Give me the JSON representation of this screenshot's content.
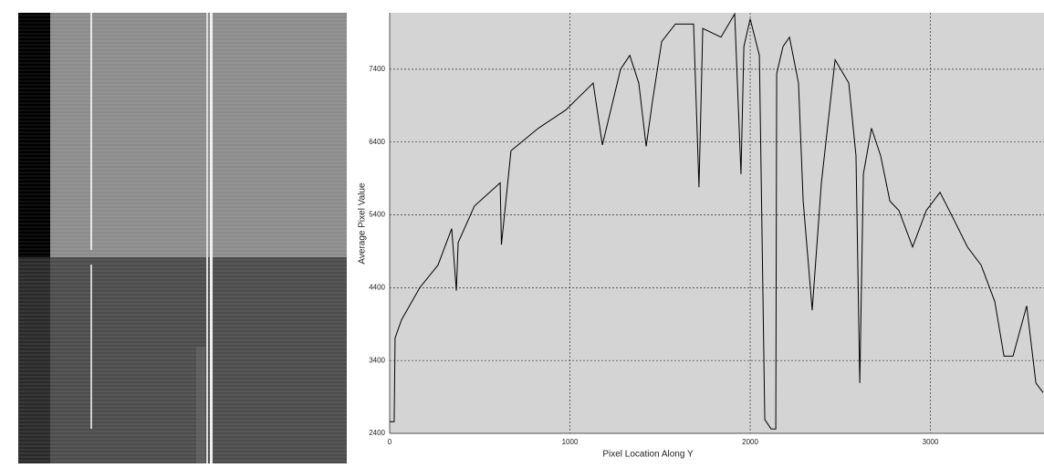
{
  "chart_data": {
    "type": "line",
    "x_label": "Pixel Location Along Y",
    "y_label": "Average Pixel Value",
    "x": [
      0,
      25,
      30,
      66,
      167,
      268,
      344,
      370,
      380,
      470,
      613,
      620,
      673,
      825,
      977,
      1129,
      1180,
      1281,
      1332,
      1382,
      1423,
      1458,
      1509,
      1585,
      1686,
      1716,
      1737,
      1838,
      1914,
      1949,
      1965,
      2000,
      2051,
      2081,
      2116,
      2142,
      2147,
      2182,
      2218,
      2268,
      2294,
      2344,
      2395,
      2471,
      2547,
      2587,
      2608,
      2628,
      2673,
      2724,
      2775,
      2825,
      2901,
      2977,
      3053,
      3129,
      3205,
      3281,
      3357,
      3408,
      3458,
      3534,
      3585,
      3625
    ],
    "series": [
      {
        "color": "#000000",
        "values": [
          2560,
          2560,
          3710,
          3960,
          4400,
          4710,
          5210,
          4360,
          5020,
          5520,
          5840,
          4990,
          6280,
          6590,
          6840,
          7210,
          6360,
          7400,
          7590,
          7210,
          6340,
          6960,
          7780,
          8020,
          8020,
          5780,
          7960,
          7840,
          8160,
          5960,
          7710,
          8090,
          7590,
          2590,
          2460,
          2460,
          7340,
          7710,
          7840,
          7210,
          5590,
          4090,
          5840,
          7530,
          7210,
          6210,
          3090,
          5960,
          6590,
          6210,
          5590,
          5460,
          4960,
          5460,
          5710,
          5340,
          4960,
          4710,
          4210,
          3460,
          3460,
          4150,
          3090,
          2960
        ]
      }
    ],
    "xlim": [
      0,
      3630
    ],
    "xticks": [
      0,
      1000,
      2000,
      3000
    ],
    "ylim": [
      2400,
      8175
    ],
    "yticks": [
      2400,
      3400,
      4400,
      5400,
      6400,
      7400
    ],
    "grid": true
  }
}
